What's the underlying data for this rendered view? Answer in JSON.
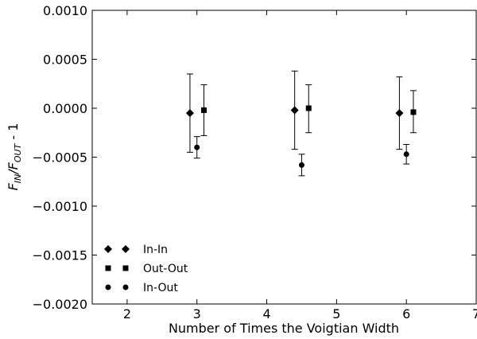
{
  "chart_data": {
    "type": "scatter",
    "title": "",
    "xlabel": "Number of Times the Voigtian Width",
    "ylabel_prefix": "F",
    "ylabel_sub1": "IN",
    "ylabel_sep": "/F",
    "ylabel_sub2": "OUT",
    "ylabel_suffix": " - 1",
    "xlim": [
      1.5,
      7
    ],
    "ylim": [
      -0.002,
      0.001
    ],
    "xticks": [
      2,
      3,
      4,
      5,
      6,
      7
    ],
    "xtick_labels": [
      "2",
      "3",
      "4",
      "5",
      "6",
      "7"
    ],
    "yticks": [
      0.001,
      0.0005,
      0.0,
      -0.0005,
      -0.001,
      -0.0015,
      -0.002
    ],
    "ytick_labels": [
      "0.0010",
      "0.0005",
      "0.0000",
      "−0.0005",
      "−0.0010",
      "−0.0015",
      "−0.0020"
    ],
    "grid": false,
    "legend_position": "lower-left",
    "series": [
      {
        "name": "In-In",
        "marker": "diamond",
        "color": "#000000",
        "x": [
          2.9,
          4.4,
          5.9
        ],
        "y": [
          -5e-05,
          -2e-05,
          -5e-05
        ],
        "yerr_low": [
          0.0004,
          0.0004,
          0.00037
        ],
        "yerr_high": [
          0.0004,
          0.0004,
          0.00037
        ]
      },
      {
        "name": "Out-Out",
        "marker": "square",
        "color": "#000000",
        "x": [
          3.1,
          4.6,
          6.1
        ],
        "y": [
          -2e-05,
          0.0,
          -4e-05
        ],
        "yerr_low": [
          0.00026,
          0.00025,
          0.00021
        ],
        "yerr_high": [
          0.00026,
          0.00024,
          0.00022
        ]
      },
      {
        "name": "In-Out",
        "marker": "circle",
        "color": "#000000",
        "x": [
          3.0,
          4.5,
          6.0
        ],
        "y": [
          -0.0004,
          -0.00058,
          -0.00047
        ],
        "yerr_low": [
          0.00011,
          0.00011,
          0.0001
        ],
        "yerr_high": [
          0.00011,
          0.00011,
          0.0001
        ]
      }
    ]
  }
}
